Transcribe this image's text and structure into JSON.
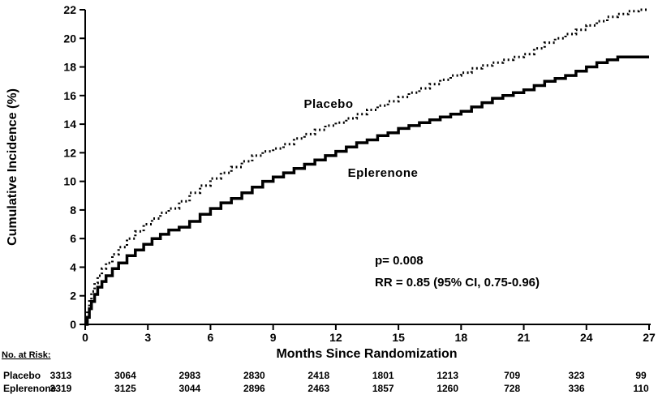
{
  "colors": {
    "curve": "#000000",
    "background": "#ffffff"
  },
  "chart_data": {
    "type": "line",
    "title": "",
    "xlabel": "Months Since Randomization",
    "ylabel": "Cumulative Incidence (%)",
    "xlim": [
      0,
      27
    ],
    "ylim": [
      0,
      22
    ],
    "xticks": [
      0,
      3,
      6,
      9,
      12,
      15,
      18,
      21,
      24,
      27
    ],
    "yticks": [
      0,
      2,
      4,
      6,
      8,
      10,
      12,
      14,
      16,
      18,
      20,
      22
    ],
    "grid": false,
    "legend_position": "inline-labels",
    "annotations": {
      "p": "p= 0.008",
      "rr": "RR = 0.85 (95% CI, 0.75-0.96)"
    },
    "series": [
      {
        "name": "Placebo",
        "style": "dotted",
        "points": [
          [
            0,
            0
          ],
          [
            0.1,
            0.9
          ],
          [
            0.2,
            1.7
          ],
          [
            0.3,
            2.3
          ],
          [
            0.45,
            2.9
          ],
          [
            0.6,
            3.4
          ],
          [
            0.8,
            3.9
          ],
          [
            1,
            4.3
          ],
          [
            1.3,
            4.9
          ],
          [
            1.6,
            5.4
          ],
          [
            2,
            6.0
          ],
          [
            2.4,
            6.5
          ],
          [
            2.8,
            7.0
          ],
          [
            3.2,
            7.4
          ],
          [
            3.6,
            7.8
          ],
          [
            4,
            8.1
          ],
          [
            4.5,
            8.6
          ],
          [
            5,
            9.2
          ],
          [
            5.5,
            9.7
          ],
          [
            6,
            10.2
          ],
          [
            6.5,
            10.6
          ],
          [
            7,
            11.0
          ],
          [
            7.5,
            11.4
          ],
          [
            8,
            11.8
          ],
          [
            8.5,
            12.1
          ],
          [
            9,
            12.3
          ],
          [
            9.5,
            12.6
          ],
          [
            10,
            13.0
          ],
          [
            10.5,
            13.3
          ],
          [
            11,
            13.6
          ],
          [
            11.5,
            13.9
          ],
          [
            12,
            14.1
          ],
          [
            12.5,
            14.4
          ],
          [
            13,
            14.7
          ],
          [
            13.5,
            15.0
          ],
          [
            14,
            15.3
          ],
          [
            14.5,
            15.6
          ],
          [
            15,
            15.9
          ],
          [
            15.5,
            16.2
          ],
          [
            16,
            16.5
          ],
          [
            16.5,
            16.8
          ],
          [
            17,
            17.1
          ],
          [
            17.5,
            17.4
          ],
          [
            18,
            17.6
          ],
          [
            18.5,
            17.9
          ],
          [
            19,
            18.1
          ],
          [
            19.5,
            18.3
          ],
          [
            20,
            18.5
          ],
          [
            20.5,
            18.7
          ],
          [
            21,
            18.9
          ],
          [
            21.5,
            19.3
          ],
          [
            22,
            19.7
          ],
          [
            22.5,
            20.0
          ],
          [
            23,
            20.3
          ],
          [
            23.5,
            20.6
          ],
          [
            24,
            20.9
          ],
          [
            24.5,
            21.2
          ],
          [
            25,
            21.5
          ],
          [
            25.5,
            21.7
          ],
          [
            26,
            21.9
          ],
          [
            26.5,
            22.0
          ],
          [
            27,
            22.0
          ]
        ]
      },
      {
        "name": "Eplerenone",
        "style": "solid",
        "points": [
          [
            0,
            0
          ],
          [
            0.1,
            0.5
          ],
          [
            0.2,
            1.1
          ],
          [
            0.3,
            1.6
          ],
          [
            0.45,
            2.1
          ],
          [
            0.6,
            2.6
          ],
          [
            0.8,
            3.0
          ],
          [
            1,
            3.4
          ],
          [
            1.3,
            3.9
          ],
          [
            1.6,
            4.3
          ],
          [
            2,
            4.8
          ],
          [
            2.4,
            5.2
          ],
          [
            2.8,
            5.6
          ],
          [
            3.2,
            6.0
          ],
          [
            3.6,
            6.3
          ],
          [
            4,
            6.6
          ],
          [
            4.5,
            6.8
          ],
          [
            5,
            7.2
          ],
          [
            5.5,
            7.7
          ],
          [
            6,
            8.1
          ],
          [
            6.5,
            8.5
          ],
          [
            7,
            8.8
          ],
          [
            7.5,
            9.2
          ],
          [
            8,
            9.6
          ],
          [
            8.5,
            10.0
          ],
          [
            9,
            10.3
          ],
          [
            9.5,
            10.6
          ],
          [
            10,
            10.9
          ],
          [
            10.5,
            11.2
          ],
          [
            11,
            11.5
          ],
          [
            11.5,
            11.8
          ],
          [
            12,
            12.1
          ],
          [
            12.5,
            12.4
          ],
          [
            13,
            12.7
          ],
          [
            13.5,
            12.9
          ],
          [
            14,
            13.2
          ],
          [
            14.5,
            13.4
          ],
          [
            15,
            13.7
          ],
          [
            15.5,
            13.9
          ],
          [
            16,
            14.1
          ],
          [
            16.5,
            14.3
          ],
          [
            17,
            14.5
          ],
          [
            17.5,
            14.7
          ],
          [
            18,
            14.9
          ],
          [
            18.5,
            15.2
          ],
          [
            19,
            15.5
          ],
          [
            19.5,
            15.8
          ],
          [
            20,
            16.0
          ],
          [
            20.5,
            16.2
          ],
          [
            21,
            16.4
          ],
          [
            21.5,
            16.7
          ],
          [
            22,
            17.0
          ],
          [
            22.5,
            17.2
          ],
          [
            23,
            17.4
          ],
          [
            23.5,
            17.7
          ],
          [
            24,
            18.0
          ],
          [
            24.5,
            18.3
          ],
          [
            25,
            18.5
          ],
          [
            25.5,
            18.7
          ],
          [
            26,
            18.7
          ],
          [
            27,
            18.7
          ]
        ]
      }
    ]
  },
  "risk_table": {
    "title": "No. at Risk:",
    "rows": [
      {
        "label": "Placebo",
        "values": [
          3313,
          3064,
          2983,
          2830,
          2418,
          1801,
          1213,
          709,
          323,
          99
        ]
      },
      {
        "label": "Eplerenone",
        "values": [
          3319,
          3125,
          3044,
          2896,
          2463,
          1857,
          1260,
          728,
          336,
          110
        ]
      }
    ]
  }
}
